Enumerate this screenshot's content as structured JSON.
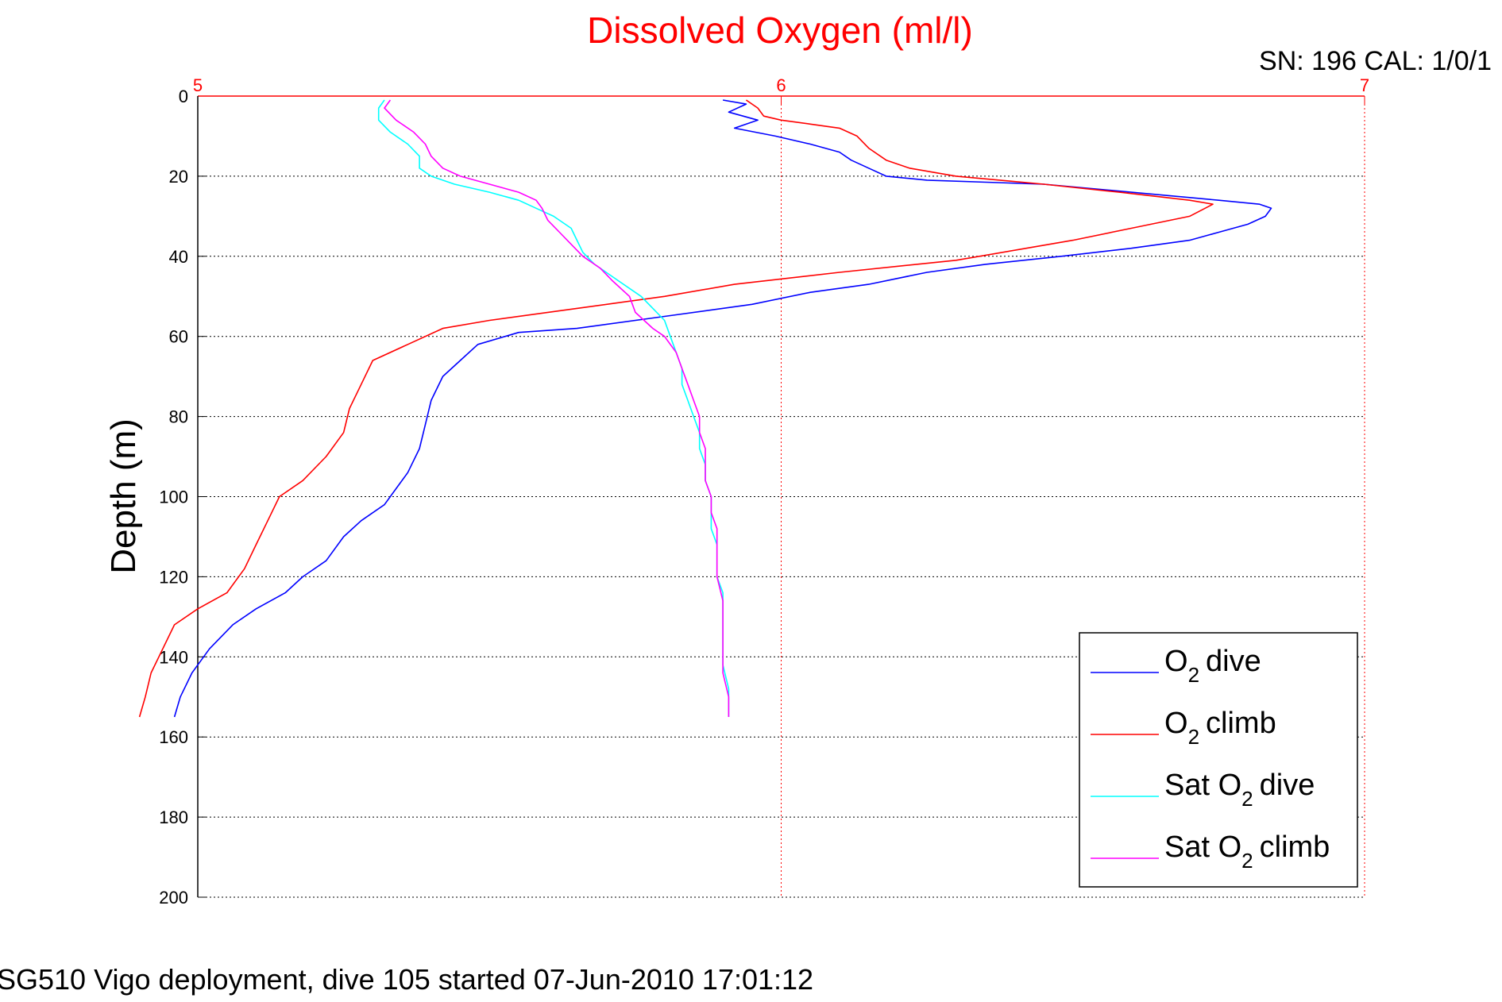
{
  "chart_data": {
    "type": "line",
    "title": "Dissolved Oxygen (ml/l)",
    "ylabel": "Depth (m)",
    "xlim": [
      5,
      7
    ],
    "ylim": [
      0,
      200
    ],
    "y_reversed": true,
    "x_ticks": [
      "5",
      "6",
      "7"
    ],
    "y_ticks": [
      "0",
      "20",
      "40",
      "60",
      "80",
      "100",
      "120",
      "140",
      "160",
      "180",
      "200"
    ],
    "grid": true,
    "legend_position": "bottom-right",
    "serial": "SN: 196  CAL: 1/0/1",
    "footer": "SG510 Vigo deployment, dive 105 started 07-Jun-2010 17:01:12",
    "series": [
      {
        "label": "dive",
        "legend_prefix": "O",
        "legend_sub": "2",
        "color": "#0000ff",
        "points": [
          [
            5.9,
            1
          ],
          [
            5.94,
            2
          ],
          [
            5.91,
            4
          ],
          [
            5.96,
            6
          ],
          [
            5.92,
            8
          ],
          [
            5.99,
            10
          ],
          [
            6.05,
            12
          ],
          [
            6.1,
            14
          ],
          [
            6.12,
            16
          ],
          [
            6.15,
            18
          ],
          [
            6.18,
            20
          ],
          [
            6.25,
            21
          ],
          [
            6.45,
            22
          ],
          [
            6.6,
            24
          ],
          [
            6.75,
            26
          ],
          [
            6.82,
            27
          ],
          [
            6.84,
            28
          ],
          [
            6.83,
            30
          ],
          [
            6.8,
            32
          ],
          [
            6.75,
            34
          ],
          [
            6.7,
            36
          ],
          [
            6.6,
            38
          ],
          [
            6.48,
            40
          ],
          [
            6.35,
            42
          ],
          [
            6.25,
            44
          ],
          [
            6.15,
            47
          ],
          [
            6.05,
            49
          ],
          [
            5.95,
            52
          ],
          [
            5.8,
            55
          ],
          [
            5.65,
            58
          ],
          [
            5.55,
            59
          ],
          [
            5.48,
            62
          ],
          [
            5.45,
            66
          ],
          [
            5.42,
            70
          ],
          [
            5.4,
            76
          ],
          [
            5.39,
            82
          ],
          [
            5.38,
            88
          ],
          [
            5.36,
            94
          ],
          [
            5.34,
            98
          ],
          [
            5.32,
            102
          ],
          [
            5.28,
            106
          ],
          [
            5.25,
            110
          ],
          [
            5.22,
            116
          ],
          [
            5.18,
            120
          ],
          [
            5.15,
            124
          ],
          [
            5.1,
            128
          ],
          [
            5.06,
            132
          ],
          [
            5.02,
            138
          ],
          [
            4.99,
            144
          ],
          [
            4.97,
            150
          ],
          [
            4.96,
            155
          ]
        ]
      },
      {
        "label": "climb",
        "legend_prefix": "O",
        "legend_sub": "2",
        "color": "#ff0000",
        "points": [
          [
            5.94,
            1
          ],
          [
            5.96,
            3
          ],
          [
            5.97,
            5
          ],
          [
            6.0,
            6
          ],
          [
            6.05,
            7
          ],
          [
            6.1,
            8
          ],
          [
            6.13,
            10
          ],
          [
            6.15,
            13
          ],
          [
            6.18,
            16
          ],
          [
            6.22,
            18
          ],
          [
            6.3,
            20
          ],
          [
            6.45,
            22
          ],
          [
            6.58,
            24
          ],
          [
            6.7,
            26
          ],
          [
            6.74,
            27
          ],
          [
            6.7,
            30
          ],
          [
            6.6,
            33
          ],
          [
            6.5,
            36
          ],
          [
            6.42,
            38
          ],
          [
            6.3,
            41
          ],
          [
            6.1,
            44
          ],
          [
            5.92,
            47
          ],
          [
            5.8,
            50
          ],
          [
            5.65,
            53
          ],
          [
            5.5,
            56
          ],
          [
            5.42,
            58
          ],
          [
            5.36,
            62
          ],
          [
            5.3,
            66
          ],
          [
            5.28,
            72
          ],
          [
            5.26,
            78
          ],
          [
            5.25,
            84
          ],
          [
            5.22,
            90
          ],
          [
            5.18,
            96
          ],
          [
            5.14,
            100
          ],
          [
            5.12,
            106
          ],
          [
            5.1,
            112
          ],
          [
            5.08,
            118
          ],
          [
            5.05,
            124
          ],
          [
            5.0,
            128
          ],
          [
            4.96,
            132
          ],
          [
            4.94,
            138
          ],
          [
            4.92,
            144
          ],
          [
            4.91,
            150
          ],
          [
            4.9,
            155
          ]
        ]
      },
      {
        "label": "dive",
        "legend_prefix": "Sat O",
        "legend_sub": "2",
        "color": "#00ffff",
        "points": [
          [
            5.32,
            1
          ],
          [
            5.31,
            3
          ],
          [
            5.31,
            6
          ],
          [
            5.33,
            9
          ],
          [
            5.36,
            12
          ],
          [
            5.38,
            15
          ],
          [
            5.38,
            18
          ],
          [
            5.4,
            20
          ],
          [
            5.44,
            22
          ],
          [
            5.5,
            24
          ],
          [
            5.55,
            26
          ],
          [
            5.58,
            28
          ],
          [
            5.61,
            30
          ],
          [
            5.64,
            33
          ],
          [
            5.65,
            36
          ],
          [
            5.66,
            39
          ],
          [
            5.68,
            42
          ],
          [
            5.72,
            46
          ],
          [
            5.76,
            50
          ],
          [
            5.8,
            56
          ],
          [
            5.81,
            60
          ],
          [
            5.82,
            64
          ],
          [
            5.83,
            68
          ],
          [
            5.83,
            72
          ],
          [
            5.84,
            76
          ],
          [
            5.85,
            80
          ],
          [
            5.86,
            84
          ],
          [
            5.86,
            88
          ],
          [
            5.87,
            92
          ],
          [
            5.87,
            96
          ],
          [
            5.88,
            100
          ],
          [
            5.88,
            104
          ],
          [
            5.88,
            108
          ],
          [
            5.89,
            112
          ],
          [
            5.89,
            116
          ],
          [
            5.89,
            120
          ],
          [
            5.9,
            124
          ],
          [
            5.9,
            130
          ],
          [
            5.9,
            136
          ],
          [
            5.9,
            142
          ],
          [
            5.91,
            148
          ],
          [
            5.91,
            155
          ]
        ]
      },
      {
        "label": "climb",
        "legend_prefix": "Sat O",
        "legend_sub": "2",
        "color": "#ff00ff",
        "points": [
          [
            5.33,
            1
          ],
          [
            5.32,
            3
          ],
          [
            5.34,
            6
          ],
          [
            5.37,
            9
          ],
          [
            5.39,
            12
          ],
          [
            5.4,
            15
          ],
          [
            5.42,
            18
          ],
          [
            5.45,
            20
          ],
          [
            5.5,
            22
          ],
          [
            5.55,
            24
          ],
          [
            5.58,
            26
          ],
          [
            5.59,
            28
          ],
          [
            5.6,
            31
          ],
          [
            5.62,
            34
          ],
          [
            5.64,
            37
          ],
          [
            5.66,
            40
          ],
          [
            5.69,
            43
          ],
          [
            5.71,
            46
          ],
          [
            5.74,
            50
          ],
          [
            5.75,
            54
          ],
          [
            5.78,
            58
          ],
          [
            5.8,
            60
          ],
          [
            5.82,
            64
          ],
          [
            5.83,
            68
          ],
          [
            5.84,
            72
          ],
          [
            5.85,
            76
          ],
          [
            5.86,
            80
          ],
          [
            5.86,
            84
          ],
          [
            5.87,
            88
          ],
          [
            5.87,
            92
          ],
          [
            5.87,
            96
          ],
          [
            5.88,
            100
          ],
          [
            5.88,
            104
          ],
          [
            5.89,
            108
          ],
          [
            5.89,
            114
          ],
          [
            5.89,
            120
          ],
          [
            5.9,
            126
          ],
          [
            5.9,
            132
          ],
          [
            5.9,
            138
          ],
          [
            5.9,
            144
          ],
          [
            5.91,
            150
          ],
          [
            5.91,
            155
          ]
        ]
      }
    ]
  }
}
